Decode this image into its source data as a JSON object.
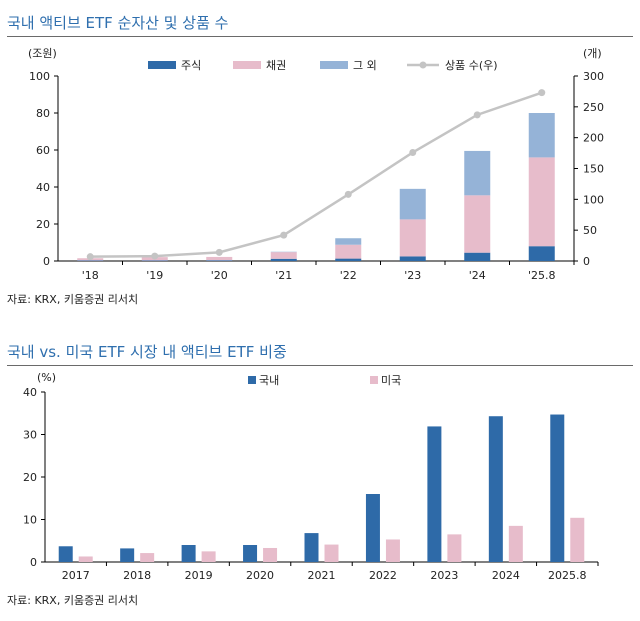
{
  "charts": [
    {
      "title": "국내 액티브 ETF 순자산 및 상품 수",
      "source": "자료: KRX, 키움증권 리서치"
    },
    {
      "title": "국내 vs. 미국 ETF 시장 내 액티브 ETF 비중",
      "source": "자료: KRX, 키움증권 리서치"
    }
  ],
  "colors": {
    "title": "#2f6fae",
    "stock": "#2e6aa8",
    "bond": "#e7bccb",
    "other": "#95b3d7",
    "count_line": "#c4c4c4",
    "domestic": "#2e6aa8",
    "us": "#e7bccb"
  },
  "chart_data": [
    {
      "type": "bar",
      "stacked": true,
      "categories": [
        "'18",
        "'19",
        "'20",
        "'21",
        "'22",
        "'23",
        "'24",
        "'25.8"
      ],
      "ylabel": "(조원)",
      "ylim": [
        0,
        100
      ],
      "yticks": [
        0,
        20,
        40,
        60,
        80,
        100
      ],
      "y2label": "(개)",
      "y2lim": [
        0,
        300
      ],
      "y2ticks": [
        0,
        50,
        100,
        150,
        200,
        250,
        300
      ],
      "legend_position": "top",
      "series": [
        {
          "name": "주식",
          "kind": "bar",
          "values": [
            0.3,
            0.3,
            0.4,
            1.2,
            1.3,
            2.5,
            4.5,
            8.0
          ]
        },
        {
          "name": "채권",
          "kind": "bar",
          "values": [
            1.2,
            1.8,
            1.8,
            3.6,
            7.5,
            20.0,
            31.0,
            48.0
          ]
        },
        {
          "name": "그 외",
          "kind": "bar",
          "values": [
            0.0,
            0.0,
            0.0,
            0.2,
            3.5,
            16.5,
            24.0,
            24.0
          ]
        },
        {
          "name": "상품 수(우)",
          "kind": "line",
          "axis": "right",
          "values": [
            7,
            8,
            14,
            42,
            108,
            176,
            237,
            273
          ]
        }
      ]
    },
    {
      "type": "bar",
      "categories": [
        "2017",
        "2018",
        "2019",
        "2020",
        "2021",
        "2022",
        "2023",
        "2024",
        "2025.8"
      ],
      "ylabel": "(%)",
      "ylim": [
        0,
        40
      ],
      "yticks": [
        0,
        10,
        20,
        30,
        40
      ],
      "legend_position": "top",
      "series": [
        {
          "name": "국내",
          "values": [
            3.7,
            3.2,
            4.0,
            4.0,
            6.8,
            16.0,
            31.9,
            34.3,
            34.7
          ]
        },
        {
          "name": "미국",
          "values": [
            1.3,
            2.1,
            2.5,
            3.3,
            4.1,
            5.3,
            6.5,
            8.5,
            10.4
          ]
        }
      ]
    }
  ]
}
